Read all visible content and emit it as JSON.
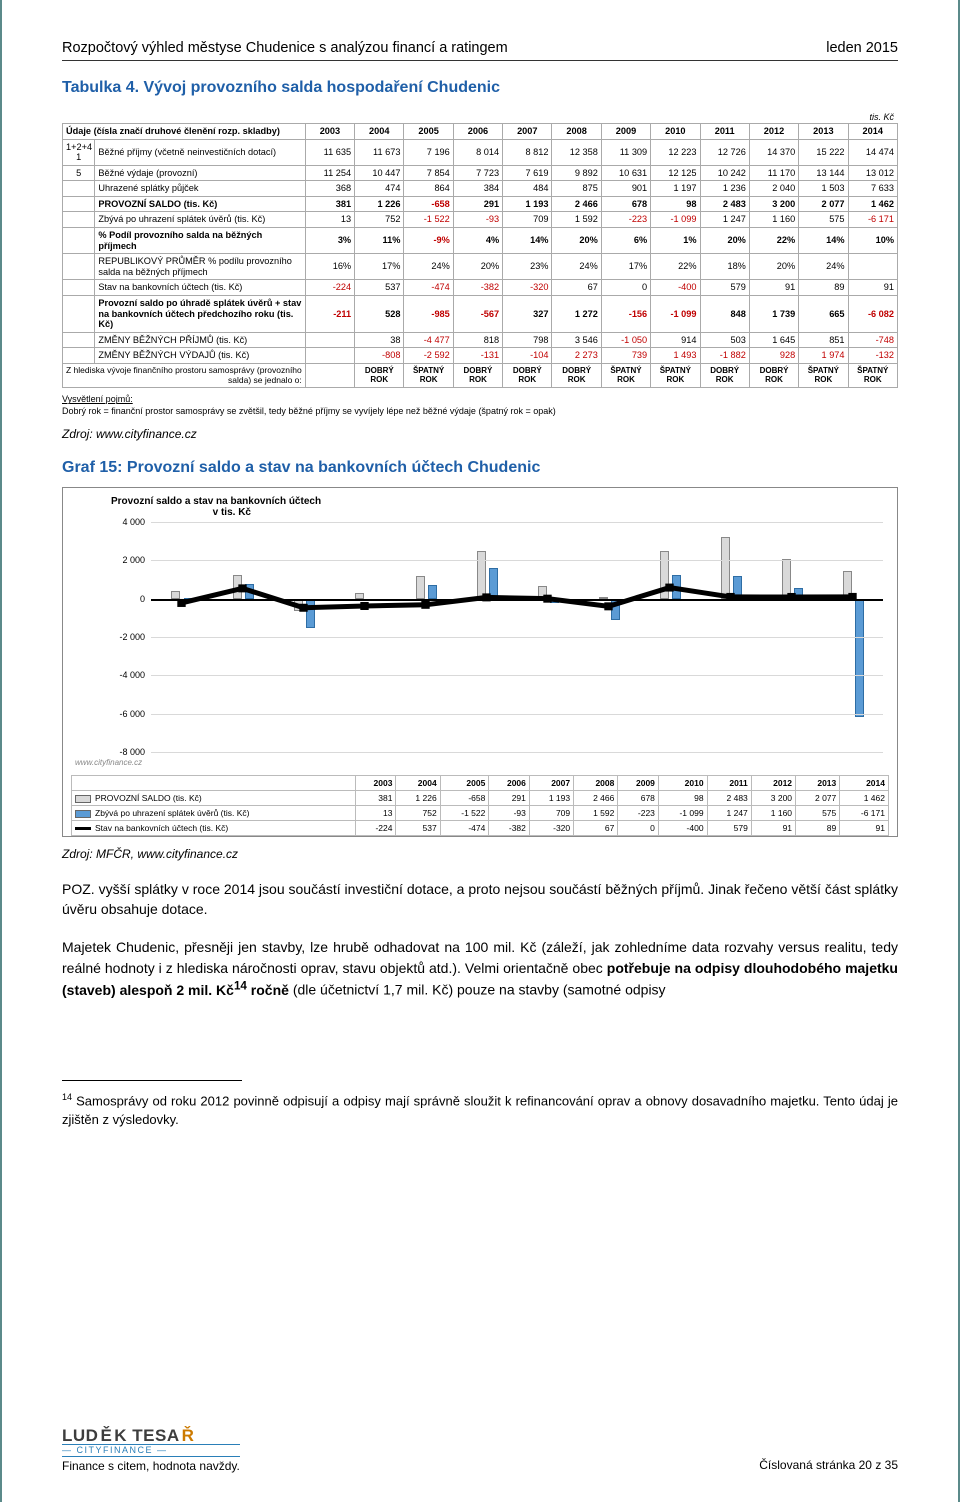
{
  "header": {
    "title": "Rozpočtový výhled městyse Chudenice s analýzou financí a ratingem",
    "date": "leden 2015"
  },
  "table4": {
    "title": "Tabulka 4. Vývoj provozního salda hospodaření Chudenic",
    "unit": "tis. Kč",
    "col_header_label": "Údaje (čísla značí druhové členění rozp. skladby)",
    "years": [
      "2003",
      "2004",
      "2005",
      "2006",
      "2007",
      "2008",
      "2009",
      "2010",
      "2011",
      "2012",
      "2013",
      "2014"
    ],
    "rows": [
      {
        "idx": "1+2+4\n1",
        "label": "Běžné příjmy (včetně neinvestičních dotací)",
        "vals": [
          "11 635",
          "11 673",
          "7 196",
          "8 014",
          "8 812",
          "12 358",
          "11 309",
          "12 223",
          "12 726",
          "14 370",
          "15 222",
          "14 474"
        ],
        "bold": false
      },
      {
        "idx": "5",
        "label": "Běžné výdaje (provozní)",
        "vals": [
          "11 254",
          "10 447",
          "7 854",
          "7 723",
          "7 619",
          "9 892",
          "10 631",
          "12 125",
          "10 242",
          "11 170",
          "13 144",
          "13 012"
        ]
      },
      {
        "idx": "",
        "label": "Uhrazené splátky půjček",
        "vals": [
          "368",
          "474",
          "864",
          "384",
          "484",
          "875",
          "901",
          "1 197",
          "1 236",
          "2 040",
          "1 503",
          "7 633"
        ]
      },
      {
        "idx": "",
        "label": "PROVOZNÍ SALDO (tis. Kč)",
        "vals": [
          "381",
          "1 226",
          "-658",
          "291",
          "1 193",
          "2 466",
          "678",
          "98",
          "2 483",
          "3 200",
          "2 077",
          "1 462"
        ],
        "bold": true,
        "neg_idx": [
          2
        ]
      },
      {
        "idx": "",
        "label": "Zbývá po uhrazení splátek úvěrů (tis. Kč)",
        "vals": [
          "13",
          "752",
          "-1 522",
          "-93",
          "709",
          "1 592",
          "-223",
          "-1 099",
          "1 247",
          "1 160",
          "575",
          "-6 171"
        ],
        "neg_idx": [
          2,
          3,
          6,
          7,
          11
        ]
      },
      {
        "idx": "",
        "label": "% Podíl provozního salda na běžných příjmech",
        "vals": [
          "3%",
          "11%",
          "-9%",
          "4%",
          "14%",
          "20%",
          "6%",
          "1%",
          "20%",
          "22%",
          "14%",
          "10%"
        ],
        "bold": true,
        "neg_idx": [
          2
        ]
      },
      {
        "idx": "",
        "label": "REPUBLIKOVÝ PRŮMĚR % podílu provozního salda na běžných příjmech",
        "vals": [
          "16%",
          "17%",
          "24%",
          "20%",
          "23%",
          "24%",
          "17%",
          "22%",
          "18%",
          "20%",
          "24%",
          ""
        ]
      },
      {
        "idx": "",
        "label": "Stav na bankovních účtech (tis. Kč)",
        "vals": [
          "-224",
          "537",
          "-474",
          "-382",
          "-320",
          "67",
          "0",
          "-400",
          "579",
          "91",
          "89",
          "91"
        ],
        "neg_idx": [
          0,
          2,
          3,
          4,
          7
        ]
      },
      {
        "idx": "",
        "label": "Provozní saldo po úhradě splátek úvěrů + stav na bankovních účtech předchozího roku (tis. Kč)",
        "vals": [
          "-211",
          "528",
          "-985",
          "-567",
          "327",
          "1 272",
          "-156",
          "-1 099",
          "848",
          "1 739",
          "665",
          "-6 082"
        ],
        "bold": true,
        "neg_idx": [
          0,
          2,
          3,
          6,
          7,
          11
        ]
      },
      {
        "idx": "",
        "label": "ZMĚNY BĚŽNÝCH PŘÍJMŮ (tis. Kč)",
        "vals": [
          "",
          "38",
          "-4 477",
          "818",
          "798",
          "3 546",
          "-1 050",
          "914",
          "503",
          "1 645",
          "851",
          "-748"
        ],
        "neg_idx": [
          2,
          6,
          11
        ]
      },
      {
        "idx": "",
        "label": "ZMĚNY BĚŽNÝCH VÝDAJŮ (tis. Kč)",
        "vals": [
          "",
          "-808",
          "-2 592",
          "-131",
          "-104",
          "2 273",
          "739",
          "1 493",
          "-1 882",
          "928",
          "1 974",
          "-132"
        ],
        "neg_idx": [
          1,
          2,
          3,
          4,
          8,
          11
        ],
        "pos_red_idx": [
          5,
          6,
          7,
          9,
          10
        ]
      }
    ],
    "assessment_label": "Z hlediska vývoje finančního prostoru samosprávy (provozního salda) se jednalo o:",
    "assessment": [
      "",
      "DOBRÝ ROK",
      "ŠPATNÝ ROK",
      "DOBRÝ ROK",
      "DOBRÝ ROK",
      "DOBRÝ ROK",
      "ŠPATNÝ ROK",
      "ŠPATNÝ ROK",
      "DOBRÝ ROK",
      "DOBRÝ ROK",
      "ŠPATNÝ ROK",
      "ŠPATNÝ ROK"
    ],
    "explain_heading": "Vysvětlení pojmů:",
    "explain_text": "Dobrý rok = finanční prostor samosprávy se zvětšil, tedy běžné příjmy se vyvíjely lépe než běžné výdaje (špatný rok = opak)",
    "source": "Zdroj: www.cityfinance.cz"
  },
  "chart": {
    "title": "Graf 15: Provozní saldo a stav na bankovních účtech Chudenic",
    "inner_title_l1": "Provozní saldo a stav na bankovních účtech",
    "inner_title_l2": "v tis. Kč",
    "ymin": -8000,
    "ymax": 4000,
    "ystep": 2000,
    "years": [
      "2003",
      "2004",
      "2005",
      "2006",
      "2007",
      "2008",
      "2009",
      "2010",
      "2011",
      "2012",
      "2013",
      "2014"
    ],
    "series": [
      {
        "name": "PROVOZNÍ SALDO (tis. Kč)",
        "type": "bar",
        "color": "#d9d9d9",
        "border": "#888",
        "vals": [
          381,
          1226,
          -658,
          291,
          1193,
          2466,
          678,
          98,
          2483,
          3200,
          2077,
          1462
        ]
      },
      {
        "name": "Zbývá po uhrazení splátek úvěrů (tis. Kč)",
        "type": "bar",
        "color": "#5b9bd5",
        "border": "#2e6da4",
        "vals": [
          13,
          752,
          -1522,
          -93,
          709,
          1592,
          -223,
          -1099,
          1247,
          1160,
          575,
          -6171
        ]
      },
      {
        "name": "Stav na bankovních účtech (tis. Kč)",
        "type": "line",
        "color": "#000000",
        "vals": [
          -224,
          537,
          -474,
          -382,
          -320,
          67,
          0,
          -400,
          579,
          91,
          89,
          91
        ]
      }
    ],
    "cf_mark": "www.cityfinance.cz",
    "source": "Zdroj: MFČR, www.cityfinance.cz"
  },
  "body": {
    "p1": "POZ. vyšší splátky v roce 2014 jsou součástí investiční dotace, a proto nejsou součástí běžných příjmů. Jinak řečeno větší část splátky úvěru obsahuje dotace.",
    "p2_a": "Majetek Chudenic, přesněji jen stavby, lze hrubě odhadovat na 100 mil. Kč (záleží, jak zohledníme data rozvahy versus realitu, tedy reálné hodnoty i z hlediska náročnosti oprav, stavu objektů atd.). Velmi orientačně obec ",
    "p2_b": "potřebuje na odpisy dlouhodobého majetku (staveb) alespoň 2 mil. Kč",
    "p2_sup": "14",
    "p2_c": " ročně",
    "p2_d": " (dle účetnictví 1,7 mil. Kč) pouze na stavby (samotné odpisy"
  },
  "footnote": {
    "num": "14",
    "text": " Samosprávy od roku 2012 povinně odpisují a odpisy mají správně sloužit k refinancování oprav a obnovy dosavadního majetku. Tento údaj je zjištěn z výsledovky."
  },
  "footer": {
    "logo_name": "LUDĚK TESAŘ",
    "logo_sub": "CITYFINANCE",
    "tagline": "Finance s citem, hodnota navždy.",
    "page": "Číslovaná stránka 20 z 35"
  }
}
